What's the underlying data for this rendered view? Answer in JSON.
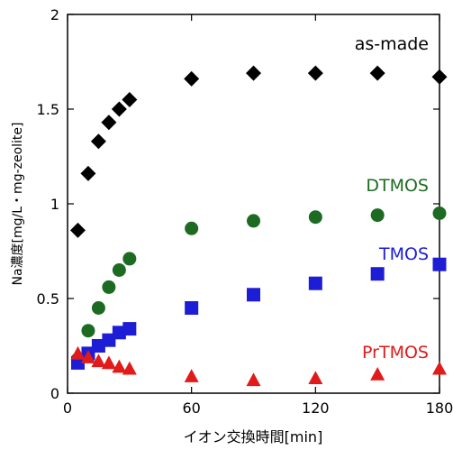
{
  "chart_data": {
    "type": "scatter",
    "xlabel": "イオン交換時間[min]",
    "ylabel": "Na濃度[mg/L・mg-zeolite]",
    "xlim": [
      0,
      180
    ],
    "ylim": [
      0,
      2
    ],
    "xticks": [
      0,
      60,
      120,
      180
    ],
    "yticks": [
      0,
      0.5,
      1,
      1.5,
      2
    ],
    "xtick_labels": [
      "0",
      "60",
      "120",
      "180"
    ],
    "ytick_labels": [
      "0",
      "0.5",
      "1",
      "1.5",
      "2"
    ],
    "grid": false,
    "series": [
      {
        "name": "as-made",
        "marker": "diamond",
        "color": "#000000",
        "x": [
          5,
          10,
          15,
          20,
          25,
          30,
          60,
          90,
          120,
          150,
          180
        ],
        "y": [
          0.86,
          1.16,
          1.33,
          1.43,
          1.5,
          1.55,
          1.66,
          1.69,
          1.69,
          1.69,
          1.67
        ]
      },
      {
        "name": "DTMOS",
        "marker": "circle",
        "color": "#1d6b22",
        "x": [
          5,
          10,
          15,
          20,
          25,
          30,
          60,
          90,
          120,
          150,
          180
        ],
        "y": [
          0.18,
          0.33,
          0.45,
          0.56,
          0.65,
          0.71,
          0.87,
          0.91,
          0.93,
          0.94,
          0.95
        ]
      },
      {
        "name": "TMOS",
        "marker": "square",
        "color": "#1d1dd6",
        "x": [
          5,
          10,
          15,
          20,
          25,
          30,
          60,
          90,
          120,
          150,
          180
        ],
        "y": [
          0.16,
          0.21,
          0.25,
          0.28,
          0.32,
          0.34,
          0.45,
          0.52,
          0.58,
          0.63,
          0.68
        ]
      },
      {
        "name": "PrTMOS",
        "marker": "triangle",
        "color": "#e11a1a",
        "x": [
          5,
          10,
          15,
          20,
          25,
          30,
          60,
          90,
          120,
          150,
          180
        ],
        "y": [
          0.21,
          0.19,
          0.17,
          0.16,
          0.14,
          0.13,
          0.09,
          0.07,
          0.08,
          0.1,
          0.13
        ]
      }
    ]
  }
}
